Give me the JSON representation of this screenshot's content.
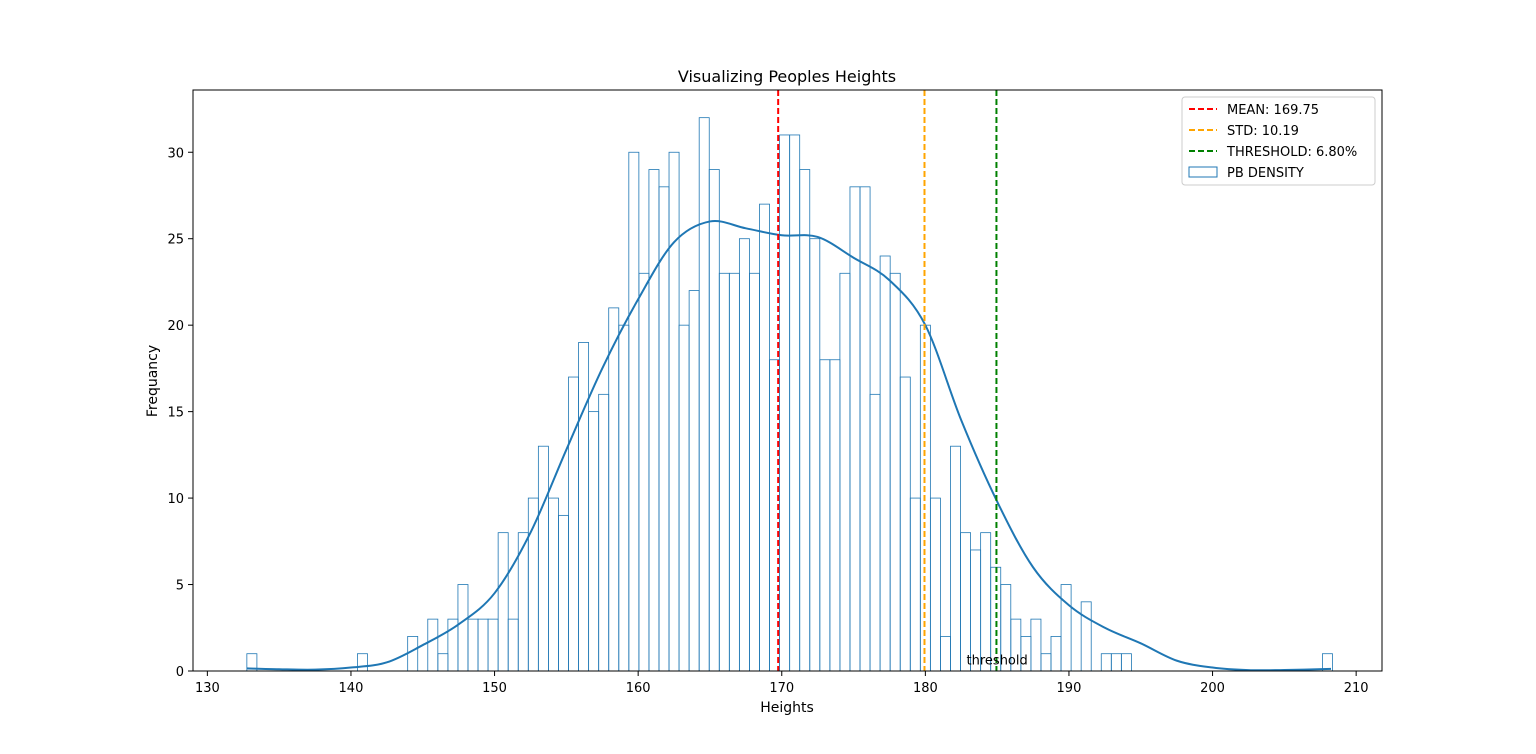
{
  "chart_data": {
    "type": "histogram",
    "title": "Visualizing Peoples Heights",
    "xlabel": "Heights",
    "ylabel": "Frequancy",
    "xlim": [
      129.0,
      211.8
    ],
    "ylim": [
      0,
      33.6
    ],
    "xticks": [
      130,
      140,
      150,
      160,
      170,
      180,
      190,
      200,
      210
    ],
    "yticks": [
      0,
      5,
      10,
      15,
      20,
      25,
      30
    ],
    "bins": {
      "start": 132.75,
      "width": 0.7,
      "counts": [
        1,
        0,
        0,
        0,
        0,
        0,
        0,
        0,
        0,
        0,
        0,
        1,
        0,
        0,
        0,
        0,
        2,
        0,
        3,
        1,
        3,
        5,
        3,
        3,
        3,
        8,
        3,
        8,
        10,
        13,
        10,
        9,
        17,
        19,
        15,
        16,
        21,
        20,
        30,
        23,
        29,
        28,
        30,
        20,
        22,
        32,
        29,
        23,
        23,
        25,
        23,
        27,
        18,
        31,
        31,
        29,
        25,
        18,
        18,
        23,
        28,
        28,
        16,
        24,
        23,
        17,
        10,
        20,
        10,
        2,
        13,
        8,
        7,
        8,
        6,
        5,
        3,
        2,
        3,
        1,
        2,
        5,
        0,
        4,
        0,
        1,
        1,
        1,
        0,
        0,
        0,
        0,
        0,
        0,
        0,
        0,
        0,
        0,
        0,
        0,
        0,
        0,
        0,
        0,
        0,
        0,
        0,
        1
      ]
    },
    "kde": {
      "x": [
        132.75,
        135,
        137.5,
        140,
        142.5,
        145,
        147.5,
        150,
        152.5,
        155,
        157.5,
        160,
        162.5,
        165,
        167.5,
        170,
        172.5,
        175,
        177.5,
        180,
        182.5,
        185,
        187.5,
        190,
        192.5,
        195,
        197.5,
        200,
        202.5,
        205,
        208.25
      ],
      "y": [
        0.15,
        0.1,
        0.08,
        0.2,
        0.5,
        1.5,
        2.7,
        4.5,
        8.0,
        12.8,
        17.5,
        21.5,
        24.8,
        26.0,
        25.6,
        25.2,
        25.1,
        23.9,
        22.6,
        20.0,
        14.5,
        9.8,
        6.0,
        3.8,
        2.5,
        1.6,
        0.6,
        0.2,
        0.05,
        0.06,
        0.12
      ]
    },
    "vlines": [
      {
        "name": "mean",
        "label": "MEAN:  169.75",
        "x": 169.75,
        "color": "#ff0000"
      },
      {
        "name": "std",
        "label": "STD: 10.19",
        "x": 179.94,
        "color": "#ffa500"
      },
      {
        "name": "threshold",
        "label": "THRESHOLD:  6.80%",
        "x": 184.95,
        "color": "#008000"
      }
    ],
    "hist_legend_label": "PB DENSITY",
    "hist_color": "#1f77b4",
    "annotation": {
      "text": "threshold",
      "x": 185,
      "y": 0.6
    },
    "legend_position": "upper right"
  }
}
